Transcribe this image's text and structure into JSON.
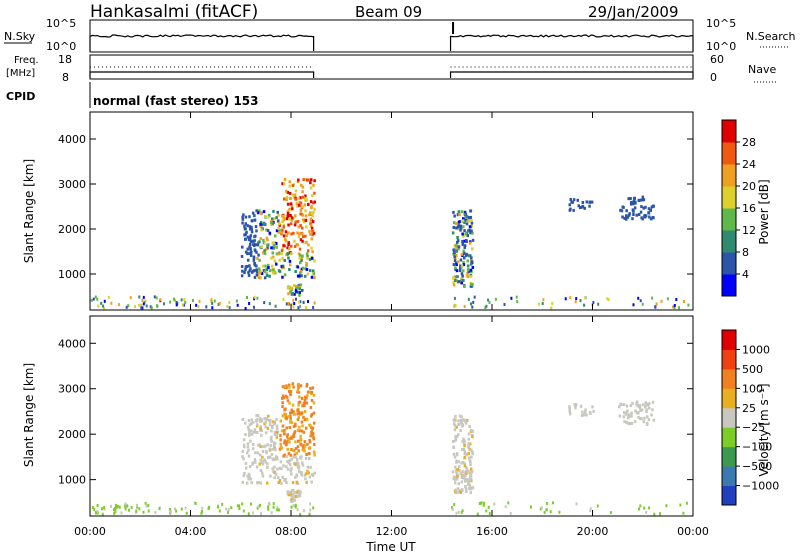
{
  "header": {
    "station": "Hankasalmi (fitACF)",
    "beam": "Beam 09",
    "date": "29/Jan/2009"
  },
  "panels": {
    "nsky": {
      "label": "N.Sky",
      "tick_top": "10^5",
      "tick_bottom": "10^0",
      "right_label": "N.Search"
    },
    "freq": {
      "label_1": "Freq.",
      "label_2": "[MHz]",
      "ticks": [
        "18",
        "8"
      ],
      "right_ticks": [
        "60",
        "0"
      ],
      "right_label": "Nave"
    },
    "cpid": {
      "label": "CPID",
      "value": "normal (fast stereo) 153"
    }
  },
  "chart_data": [
    {
      "type": "heatmap",
      "ylabel": "Slant Range [km]",
      "y_ticks": [
        "1000",
        "2000",
        "3000",
        "4000"
      ],
      "ylim": [
        200,
        4600
      ],
      "xlim": [
        0,
        24
      ],
      "colorbar": {
        "label": "Power [dB]",
        "ticks": [
          "4",
          "8",
          "12",
          "16",
          "20",
          "24",
          "28"
        ],
        "colors": [
          "#0000ff",
          "#2a55a8",
          "#2f8a6f",
          "#5fb84a",
          "#dcd02a",
          "#f0a020",
          "#f05a10",
          "#e00000"
        ]
      },
      "data_gaps_hours": [
        [
          8.9,
          14.35
        ]
      ]
    },
    {
      "type": "heatmap",
      "ylabel": "Slant Range [km]",
      "y_ticks": [
        "1000",
        "2000",
        "3000",
        "4000"
      ],
      "ylim": [
        200,
        4600
      ],
      "xlim": [
        0,
        24
      ],
      "xlabel": "Time UT",
      "x_ticks": [
        "00:00",
        "04:00",
        "08:00",
        "12:00",
        "16:00",
        "20:00",
        "00:00"
      ],
      "colorbar": {
        "label": "Velocity [m s⁻¹]",
        "ticks": [
          "1000",
          "500",
          "100",
          "25",
          "−25",
          "−100",
          "−500",
          "−1000"
        ],
        "colors": [
          "#2040c0",
          "#3a7ab0",
          "#3c9a50",
          "#7ccc2a",
          "#c8c8c0",
          "#e8b020",
          "#f08020",
          "#f04010",
          "#e00000"
        ]
      },
      "data_gaps_hours": [
        [
          8.9,
          14.35
        ]
      ]
    }
  ]
}
